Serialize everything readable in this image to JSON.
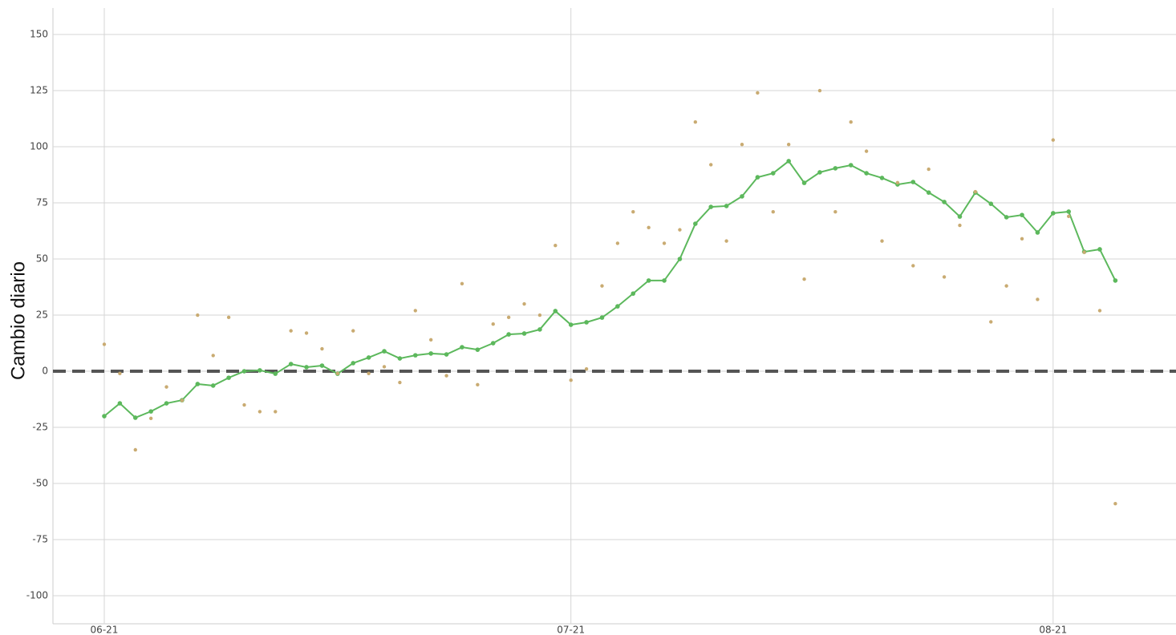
{
  "chart_data": {
    "type": "line",
    "y_label": "Cambio diario",
    "x": [
      0,
      1,
      2,
      3,
      4,
      5,
      6,
      7,
      8,
      9,
      10,
      11,
      12,
      13,
      14,
      15,
      16,
      17,
      18,
      19,
      20,
      21,
      22,
      23,
      24,
      25,
      26,
      27,
      28,
      29,
      30,
      31,
      32,
      33,
      34,
      35,
      36,
      37,
      38,
      39,
      40,
      41,
      42,
      43,
      44,
      45,
      46,
      47,
      48,
      49,
      50,
      51,
      52,
      53,
      54,
      55,
      56,
      57,
      58,
      59,
      60,
      61,
      62,
      63,
      64,
      65
    ],
    "series": [
      {
        "color": "#5cb85c",
        "markers": "points",
        "values": [
          -20,
          -14.3,
          -20.7,
          -17.9,
          -14.3,
          -12.9,
          -5.7,
          -6.4,
          -2.9,
          0,
          0.4,
          -1.1,
          3.2,
          1.8,
          2.5,
          -1.1,
          3.6,
          6.1,
          8.9,
          5.7,
          7.1,
          7.9,
          7.5,
          10.7,
          9.6,
          12.5,
          16.4,
          16.8,
          18.6,
          26.8,
          20.7,
          21.8,
          23.9,
          28.9,
          34.6,
          40.4,
          40.4,
          50,
          65.7,
          73.2,
          73.6,
          77.9,
          86.4,
          88.2,
          93.6,
          83.9,
          88.6,
          90.4,
          91.8,
          88.2,
          86.1,
          83.2,
          84.3,
          79.6,
          75.4,
          68.9,
          79.6,
          74.6,
          68.6,
          69.6,
          61.8,
          70.4,
          71.1,
          53.2,
          54.3,
          40.4
        ]
      },
      {
        "color": "#c9ab72",
        "markers": "only",
        "values": [
          12,
          -1,
          -35,
          -21,
          -7,
          -13,
          25,
          7,
          24,
          -15,
          -18,
          -18,
          18,
          17,
          10,
          -1,
          18,
          -1,
          2,
          -5,
          27,
          14,
          -2,
          39,
          -6,
          21,
          24,
          30,
          25,
          56,
          -4,
          1,
          38,
          57,
          71,
          64,
          57,
          63,
          111,
          92,
          58,
          101,
          124,
          71,
          101,
          41,
          125,
          71,
          111,
          98,
          58,
          84,
          47,
          90,
          42,
          65,
          80,
          22,
          38,
          59,
          32,
          103,
          69,
          53,
          27,
          -59
        ]
      }
    ],
    "reference_line": 0,
    "xlim": [
      -3.3,
      68.9
    ],
    "xticks": [
      {
        "value": 0,
        "label": "06-21"
      },
      {
        "value": 30,
        "label": "07-21"
      },
      {
        "value": 61,
        "label": "08-21"
      }
    ],
    "ylim": [
      -112.5,
      161.8
    ],
    "yticks": [
      -100,
      -75,
      -50,
      -25,
      0,
      25,
      50,
      75,
      100,
      125,
      150
    ],
    "grid": true
  }
}
